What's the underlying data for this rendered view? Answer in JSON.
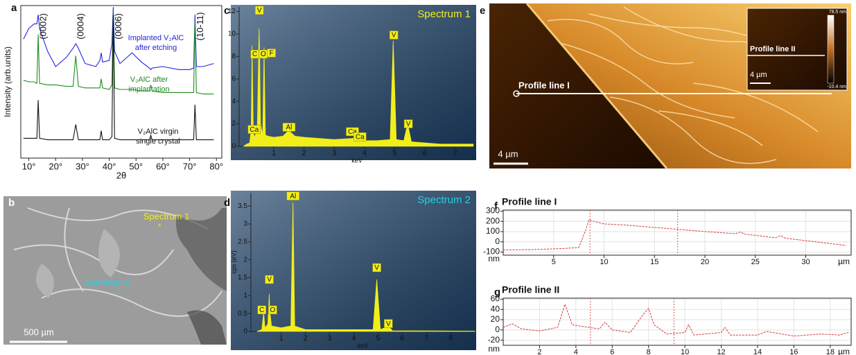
{
  "chart_data": [
    {
      "type": "line",
      "panel": "a",
      "xlabel": "2θ",
      "ylabel": "Intensity (arb.units)",
      "x": [
        8,
        10,
        12,
        13,
        13.5,
        14,
        17,
        20,
        24,
        26.5,
        27.5,
        28.5,
        31,
        35,
        36.5,
        37,
        37.5,
        40,
        41,
        41.5,
        42,
        44,
        48.5,
        52,
        55,
        55.5,
        56,
        60,
        66,
        70,
        71.5,
        72,
        72.5,
        75,
        79
      ],
      "series": [
        {
          "label": [
            "Implanted V₂AlC",
            "after etching"
          ],
          "color": "#2323e0",
          "values": [
            78,
            85,
            88,
            88,
            94,
            85,
            70,
            60,
            66,
            72,
            75,
            72,
            62,
            60,
            64,
            69,
            63,
            64,
            75,
            99,
            70,
            62,
            69,
            63,
            59,
            58,
            59,
            60,
            58,
            58,
            59,
            94,
            60,
            60,
            62
          ]
        },
        {
          "label": [
            "V₂AlC after",
            "implantation"
          ],
          "color": "#1e8a1e",
          "values": [
            51,
            50,
            50,
            49,
            81,
            49,
            48,
            48,
            47,
            47,
            67,
            47,
            46,
            46,
            46,
            52,
            46,
            45,
            48,
            97,
            46,
            45,
            45,
            44,
            44,
            48,
            44,
            43,
            43,
            43,
            43,
            90,
            43,
            42,
            42
          ]
        },
        {
          "label": [
            "V₂AlC virgin",
            "single crystal"
          ],
          "color": "#111111",
          "values": [
            13,
            13,
            13,
            13,
            38,
            13,
            12,
            12,
            12,
            12,
            22,
            12,
            12,
            12,
            12,
            18,
            12,
            12,
            14,
            94,
            13,
            12,
            12,
            12,
            12,
            15,
            12,
            12,
            12,
            12,
            12,
            35,
            12,
            12,
            12
          ]
        }
      ],
      "peak_labels": [
        {
          "text": "(0002)",
          "x": 13.5
        },
        {
          "text": "(0004)",
          "x": 27.5
        },
        {
          "text": "(0006)",
          "x": 41.5
        },
        {
          "text": "(10-11)",
          "x": 72
        }
      ],
      "xlim": [
        7,
        82
      ],
      "ylim": [
        0,
        100
      ],
      "xticks": [
        {
          "value": 10,
          "label": "10°"
        },
        {
          "value": 20,
          "label": "20°"
        },
        {
          "value": 30,
          "label": "30°"
        },
        {
          "value": 40,
          "label": "40°"
        },
        {
          "value": 50,
          "label": "50°"
        },
        {
          "value": 60,
          "label": "60°"
        },
        {
          "value": 70,
          "label": "70°"
        },
        {
          "value": 80,
          "label": "80°"
        }
      ]
    },
    {
      "type": "area",
      "panel": "c",
      "title": "Spectrum 1",
      "title_color": "#f2ee1a",
      "xlabel": "keV",
      "color": "#f2ee1a",
      "background": "#1b3f66",
      "x": [
        0,
        0.1,
        0.2,
        0.25,
        0.28,
        0.32,
        0.36,
        0.45,
        0.51,
        0.525,
        0.56,
        0.63,
        0.677,
        0.72,
        0.8,
        1.0,
        1.3,
        1.49,
        1.7,
        2.0,
        3.0,
        3.6,
        3.69,
        3.8,
        4.0,
        4.4,
        4.85,
        4.95,
        5.05,
        5.3,
        5.43,
        5.55,
        6.5,
        7.6
      ],
      "values": [
        0,
        0.2,
        0.3,
        1.5,
        9,
        1.2,
        0.8,
        1.5,
        10.5,
        9,
        2,
        1,
        8.8,
        1,
        0.9,
        0.8,
        0.9,
        1.4,
        0.9,
        0.8,
        0.6,
        0.7,
        0.8,
        0.6,
        0.5,
        0.5,
        0.6,
        9.4,
        0.6,
        0.5,
        2,
        0.4,
        0.2,
        0.2
      ],
      "annotations": [
        {
          "text": "V",
          "x": 0.52,
          "y": 12.1
        },
        {
          "text": "C",
          "x": 0.37,
          "y": 8.2
        },
        {
          "text": "O",
          "x": 0.65,
          "y": 8.2
        },
        {
          "text": "F",
          "x": 0.92,
          "y": 8.3
        },
        {
          "text": "Ca",
          "x": 0.35,
          "y": 1.5
        },
        {
          "text": "Al",
          "x": 1.5,
          "y": 1.7
        },
        {
          "text": "Ca",
          "x": 3.6,
          "y": 1.3
        },
        {
          "text": "Ca",
          "x": 3.85,
          "y": 0.85
        },
        {
          "text": "V",
          "x": 4.97,
          "y": 9.9
        },
        {
          "text": "V",
          "x": 5.45,
          "y": 2.0
        }
      ],
      "xlim": [
        -0.15,
        7.65
      ],
      "ylim": [
        0,
        12.4
      ],
      "xticks": [
        1,
        2,
        3,
        4,
        5,
        6,
        7
      ],
      "yticks": [
        0,
        2,
        4,
        6,
        8,
        10,
        12
      ]
    },
    {
      "type": "area",
      "panel": "d",
      "title": "Spectrum 2",
      "title_color": "#22d3e6",
      "xlabel": "keV",
      "ylabel": "cps (eV)",
      "color": "#f2ee1a",
      "background": "#1b3f66",
      "x": [
        0,
        0.2,
        0.277,
        0.33,
        0.45,
        0.51,
        0.525,
        0.6,
        1.0,
        1.4,
        1.487,
        1.56,
        2,
        4.8,
        4.95,
        5.1,
        5.43,
        5.6,
        9
      ],
      "values": [
        0,
        0.05,
        0.52,
        0.1,
        0.2,
        1.05,
        0.6,
        0.15,
        0.1,
        0.15,
        3.6,
        0.15,
        0.05,
        0.05,
        1.45,
        0.05,
        0.15,
        0.02,
        0.01
      ],
      "annotations": [
        {
          "text": "Al",
          "x": 1.49,
          "y": 3.78
        },
        {
          "text": "V",
          "x": 0.51,
          "y": 1.45
        },
        {
          "text": "C",
          "x": 0.2,
          "y": 0.6
        },
        {
          "text": "O",
          "x": 0.65,
          "y": 0.6
        },
        {
          "text": "V",
          "x": 4.95,
          "y": 1.78
        },
        {
          "text": "V",
          "x": 5.43,
          "y": 0.22
        }
      ],
      "xlim": [
        -0.25,
        9.0
      ],
      "ylim": [
        0,
        3.87
      ],
      "xticks": [
        1,
        2,
        3,
        4,
        5,
        6,
        7,
        8
      ],
      "yticks": [
        0,
        0.5,
        1,
        1.5,
        2,
        2.5,
        3,
        3.5
      ]
    },
    {
      "type": "line",
      "panel": "f",
      "title": "Profile line I",
      "x_unit": "µm",
      "y_unit": "nm",
      "color": "#d43a3a",
      "dashed": true,
      "grid": true,
      "x": [
        0,
        3,
        6,
        7.5,
        8.2,
        8.5,
        9,
        10,
        12,
        15,
        17,
        20,
        23,
        23.5,
        24,
        27,
        27.5,
        28,
        31,
        34
      ],
      "values": [
        -80,
        -75,
        -65,
        -55,
        120,
        215,
        200,
        175,
        165,
        140,
        125,
        100,
        80,
        95,
        75,
        40,
        60,
        35,
        0,
        -35
      ],
      "cursors": [
        8.6,
        17.3
      ],
      "xlim": [
        0,
        34.5
      ],
      "ylim": [
        -130,
        310
      ],
      "xticks": [
        5,
        10,
        15,
        20,
        25,
        30
      ],
      "yticks": [
        -100,
        0,
        100,
        200,
        300
      ]
    },
    {
      "type": "line",
      "panel": "g",
      "title": "Profile line II",
      "x_unit": "µm",
      "y_unit": "nm",
      "color": "#d43a3a",
      "dashed": true,
      "grid": true,
      "x": [
        0,
        0.5,
        1,
        2,
        3,
        3.4,
        3.8,
        4.5,
        5.3,
        5.6,
        6,
        7,
        7.7,
        8,
        8.3,
        9,
        10,
        10.2,
        10.5,
        12,
        12.2,
        12.5,
        14,
        14.5,
        16,
        17.5,
        18.5,
        19
      ],
      "values": [
        5,
        12,
        2,
        -2,
        5,
        50,
        10,
        6,
        2,
        15,
        0,
        -5,
        30,
        42,
        10,
        -8,
        -5,
        10,
        -10,
        -5,
        5,
        -10,
        -10,
        -3,
        -12,
        -8,
        -10,
        -5
      ],
      "cursors": [
        4.8,
        9.4
      ],
      "xlim": [
        0,
        19.15
      ],
      "ylim": [
        -30,
        62
      ],
      "xticks": [
        2,
        4,
        6,
        8,
        10,
        12,
        14,
        16,
        18
      ],
      "yticks": [
        -20,
        0,
        20,
        40,
        60
      ]
    }
  ],
  "images": [
    {
      "panel": "b",
      "spectrum1": "Spectrum 1",
      "spectrum2": "Spectrum 2",
      "scale": "500 µm"
    },
    {
      "panel": "e",
      "profile1": "Profile line I",
      "profile2": "Profile line II",
      "scale": "4 µm",
      "inset_scale": "4 µm",
      "cbar_max": "78.5 nm",
      "cbar_min": "-10.4 nm"
    }
  ]
}
